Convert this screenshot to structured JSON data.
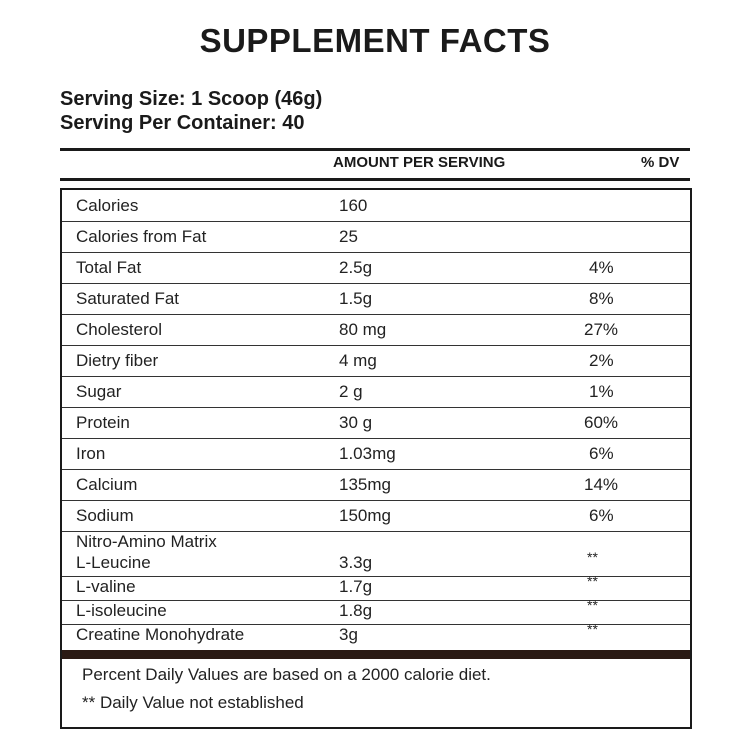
{
  "title": "SUPPLEMENT FACTS",
  "serving_size": "Serving Size: 1 Scoop (46g)",
  "servings_per_container": "Serving Per Container: 40",
  "columns": {
    "amount": "AMOUNT PER SERVING",
    "dv": "% DV"
  },
  "rows": [
    {
      "name": "Calories",
      "amount": "160"
    },
    {
      "name": "Calories from Fat",
      "amount": "25"
    },
    {
      "name": "Total Fat",
      "amount": "2.5g",
      "dv": "4%"
    },
    {
      "name": "Saturated Fat",
      "amount": "1.5g",
      "dv": "8%"
    },
    {
      "name": "Cholesterol",
      "amount": "80 mg",
      "dv": "27%"
    },
    {
      "name": "Dietry fiber",
      "amount": "4 mg",
      "dv": "2%"
    },
    {
      "name": "Sugar",
      "amount": "2 g",
      "dv": "1%"
    },
    {
      "name": "Protein",
      "amount": "30 g",
      "dv": "60%"
    },
    {
      "name": "Iron",
      "amount": "1.03mg",
      "dv": "6%"
    },
    {
      "name": "Calcium",
      "amount": "135mg",
      "dv": "14%"
    },
    {
      "name": "Sodium",
      "amount": "150mg",
      "dv": "6%"
    }
  ],
  "matrix": {
    "name": "Nitro-Amino Matrix",
    "rows": [
      {
        "name": "L-Leucine",
        "amount": "3.3g",
        "dv": "**"
      },
      {
        "name": "L-valine",
        "amount": "1.7g",
        "dv": "**"
      },
      {
        "name": "L-isoleucine",
        "amount": "1.8g",
        "dv": "**"
      },
      {
        "name": "Creatine Monohydrate",
        "amount": "3g",
        "dv": "**"
      }
    ]
  },
  "footnotes": [
    "Percent Daily Values are based on a 2000 calorie diet.",
    "** Daily Value not established"
  ]
}
